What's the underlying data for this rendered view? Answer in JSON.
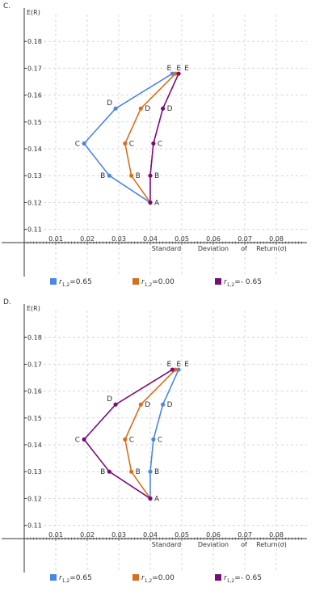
{
  "chart_data": [
    {
      "panel_label": "C.",
      "type": "line",
      "ylabel": "E(R)",
      "xlabel_words": [
        "Standard",
        "Deviation",
        "of",
        "Return(σ)"
      ],
      "xlim": [
        0,
        0.09
      ],
      "ylim": [
        0.1,
        0.19
      ],
      "x_ticks": [
        "0.01",
        "0.02",
        "0.03",
        "0.04",
        "0.05",
        "0.06",
        "0.07",
        "0.08"
      ],
      "y_ticks": [
        "0.18",
        "0.17",
        "0.16",
        "0.15",
        "0.14",
        "0.13",
        "0.12",
        "0.11"
      ],
      "grid": true,
      "series": [
        {
          "name": "=0.65",
          "color": "#4a86e8",
          "points": [
            {
              "x": 0.04,
              "y": 0.12,
              "label": ""
            },
            {
              "x": 0.027,
              "y": 0.13,
              "label": "B"
            },
            {
              "x": 0.019,
              "y": 0.142,
              "label": "C"
            },
            {
              "x": 0.029,
              "y": 0.155,
              "label": "D"
            },
            {
              "x": 0.047,
              "y": 0.168,
              "label": "E"
            }
          ]
        },
        {
          "name": "=0.00",
          "color": "#d86f1c",
          "points": [
            {
              "x": 0.04,
              "y": 0.12,
              "label": ""
            },
            {
              "x": 0.034,
              "y": 0.13,
              "label": "B"
            },
            {
              "x": 0.032,
              "y": 0.142,
              "label": "C"
            },
            {
              "x": 0.037,
              "y": 0.155,
              "label": "D"
            },
            {
              "x": 0.048,
              "y": 0.168,
              "label": "E"
            }
          ]
        },
        {
          "name": "=- 0.65",
          "color": "#7b0a7b",
          "points": [
            {
              "x": 0.04,
              "y": 0.12,
              "label": "A"
            },
            {
              "x": 0.04,
              "y": 0.13,
              "label": "B"
            },
            {
              "x": 0.041,
              "y": 0.142,
              "label": "C"
            },
            {
              "x": 0.044,
              "y": 0.155,
              "label": "D"
            },
            {
              "x": 0.049,
              "y": 0.168,
              "label": "E"
            }
          ]
        }
      ],
      "legend_prefix": "r",
      "legend_sub": "1,2"
    },
    {
      "panel_label": "D.",
      "type": "line",
      "ylabel": "E(R)",
      "xlabel_words": [
        "Standard",
        "Deviation",
        "of",
        "Return(σ)"
      ],
      "xlim": [
        0,
        0.09
      ],
      "ylim": [
        0.1,
        0.19
      ],
      "x_ticks": [
        "0.01",
        "0.02",
        "0.03",
        "0.04",
        "0.05",
        "0.06",
        "0.07",
        "0.08"
      ],
      "y_ticks": [
        "0.18",
        "0.17",
        "0.16",
        "0.15",
        "0.14",
        "0.13",
        "0.12",
        "0.11"
      ],
      "grid": true,
      "series": [
        {
          "name": "=0.65",
          "color": "#4a86e8",
          "points": [
            {
              "x": 0.04,
              "y": 0.12,
              "label": "A"
            },
            {
              "x": 0.04,
              "y": 0.13,
              "label": "B"
            },
            {
              "x": 0.041,
              "y": 0.142,
              "label": "C"
            },
            {
              "x": 0.044,
              "y": 0.155,
              "label": "D"
            },
            {
              "x": 0.049,
              "y": 0.168,
              "label": "E"
            }
          ]
        },
        {
          "name": "=0.00",
          "color": "#d86f1c",
          "points": [
            {
              "x": 0.04,
              "y": 0.12,
              "label": ""
            },
            {
              "x": 0.034,
              "y": 0.13,
              "label": "B"
            },
            {
              "x": 0.032,
              "y": 0.142,
              "label": "C"
            },
            {
              "x": 0.037,
              "y": 0.155,
              "label": "D"
            },
            {
              "x": 0.048,
              "y": 0.168,
              "label": "E"
            }
          ]
        },
        {
          "name": "=- 0.65",
          "color": "#7b0a7b",
          "points": [
            {
              "x": 0.04,
              "y": 0.12,
              "label": ""
            },
            {
              "x": 0.027,
              "y": 0.13,
              "label": "B"
            },
            {
              "x": 0.019,
              "y": 0.142,
              "label": "C"
            },
            {
              "x": 0.029,
              "y": 0.155,
              "label": "D"
            },
            {
              "x": 0.047,
              "y": 0.168,
              "label": "E"
            }
          ]
        }
      ],
      "legend_prefix": "r",
      "legend_sub": "1,2"
    }
  ]
}
